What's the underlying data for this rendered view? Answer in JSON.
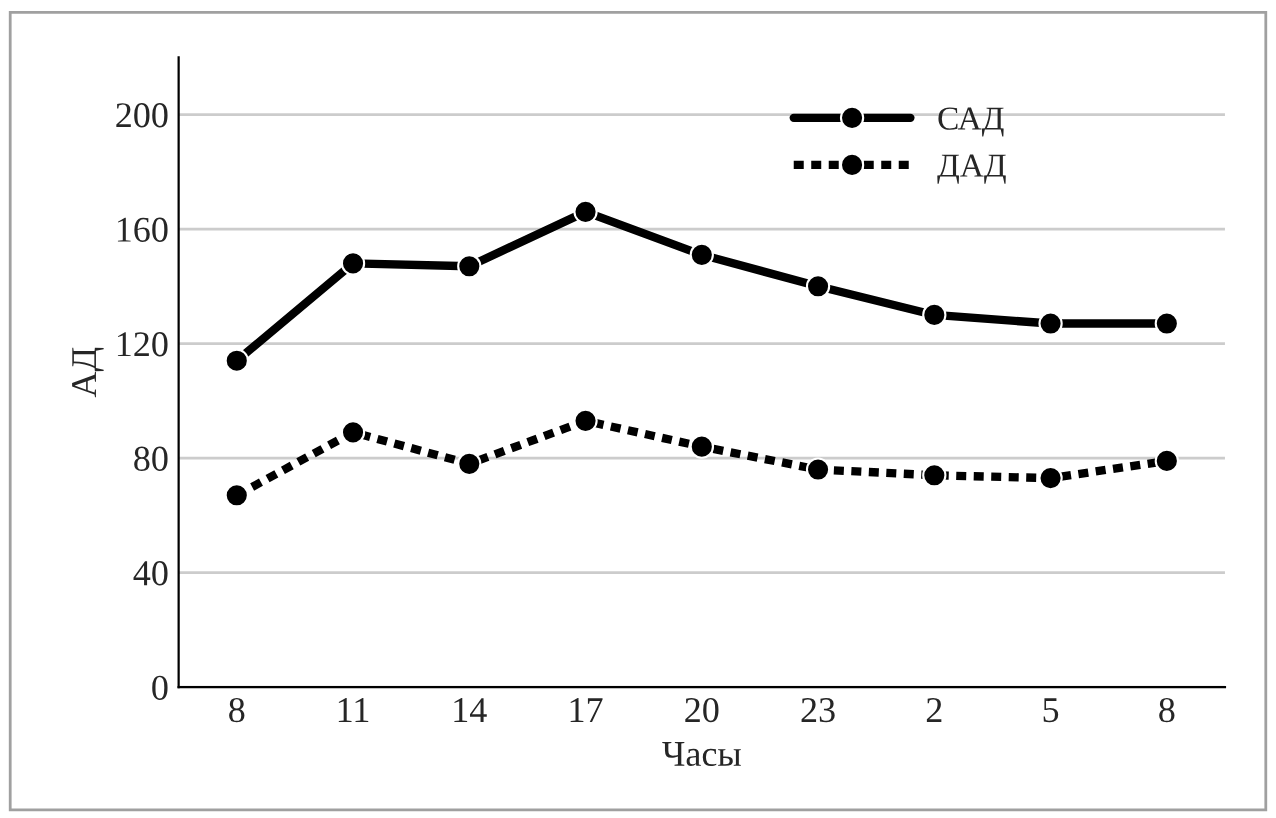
{
  "chart_data": {
    "type": "line",
    "xlabel": "Часы",
    "ylabel": "АД",
    "categories": [
      "8",
      "11",
      "14",
      "17",
      "20",
      "23",
      "2",
      "5",
      "8"
    ],
    "series": [
      {
        "name": "САД",
        "color": "#000000",
        "line_style": "solid",
        "values": [
          114,
          148,
          147,
          166,
          151,
          140,
          130,
          127,
          127
        ]
      },
      {
        "name": "ДАД",
        "color": "#000000",
        "line_style": "dotted",
        "values": [
          67,
          89,
          78,
          93,
          84,
          76,
          74,
          73,
          79
        ]
      }
    ],
    "ylim": [
      0,
      220
    ],
    "yticks": [
      0,
      40,
      80,
      120,
      160,
      200
    ],
    "grid": "y",
    "legend": "top right",
    "marker": "circle"
  }
}
